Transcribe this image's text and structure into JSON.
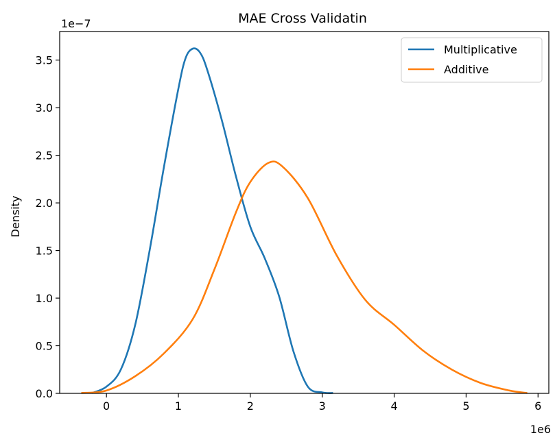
{
  "chart_data": {
    "type": "line",
    "title": "MAE Cross Validatin",
    "xlabel": "",
    "ylabel": "Density",
    "x_offset_text": "1e6",
    "y_offset_text": "1e−7",
    "xlim": [
      -0.65,
      6.15
    ],
    "ylim": [
      0,
      3.8
    ],
    "x_ticks": [
      0,
      1,
      2,
      3,
      4,
      5,
      6
    ],
    "x_tick_labels": [
      "0",
      "1",
      "2",
      "3",
      "4",
      "5",
      "6"
    ],
    "y_ticks": [
      0.0,
      0.5,
      1.0,
      1.5,
      2.0,
      2.5,
      3.0,
      3.5
    ],
    "y_tick_labels": [
      "0.0",
      "0.5",
      "1.0",
      "1.5",
      "2.0",
      "2.5",
      "3.0",
      "3.5"
    ],
    "grid": false,
    "legend_position": "top-right",
    "series": [
      {
        "name": "Multiplicative",
        "color": "#1f77b4",
        "points": [
          [
            -0.2,
            0.0
          ],
          [
            0.0,
            0.07
          ],
          [
            0.2,
            0.25
          ],
          [
            0.4,
            0.72
          ],
          [
            0.6,
            1.5
          ],
          [
            0.8,
            2.38
          ],
          [
            1.0,
            3.2
          ],
          [
            1.1,
            3.52
          ],
          [
            1.2,
            3.62
          ],
          [
            1.3,
            3.58
          ],
          [
            1.4,
            3.4
          ],
          [
            1.6,
            2.88
          ],
          [
            1.8,
            2.28
          ],
          [
            2.0,
            1.75
          ],
          [
            2.2,
            1.42
          ],
          [
            2.4,
            1.02
          ],
          [
            2.6,
            0.44
          ],
          [
            2.8,
            0.07
          ],
          [
            3.0,
            0.01
          ],
          [
            3.15,
            0.0
          ]
        ]
      },
      {
        "name": "Additive",
        "color": "#ff7f0e",
        "points": [
          [
            -0.35,
            0.0
          ],
          [
            0.0,
            0.03
          ],
          [
            0.4,
            0.18
          ],
          [
            0.8,
            0.42
          ],
          [
            1.2,
            0.78
          ],
          [
            1.5,
            1.3
          ],
          [
            1.8,
            1.9
          ],
          [
            2.0,
            2.22
          ],
          [
            2.25,
            2.42
          ],
          [
            2.45,
            2.38
          ],
          [
            2.8,
            2.05
          ],
          [
            3.2,
            1.45
          ],
          [
            3.6,
            0.98
          ],
          [
            4.0,
            0.72
          ],
          [
            4.4,
            0.45
          ],
          [
            4.8,
            0.25
          ],
          [
            5.2,
            0.11
          ],
          [
            5.6,
            0.03
          ],
          [
            5.85,
            0.0
          ]
        ]
      }
    ]
  }
}
